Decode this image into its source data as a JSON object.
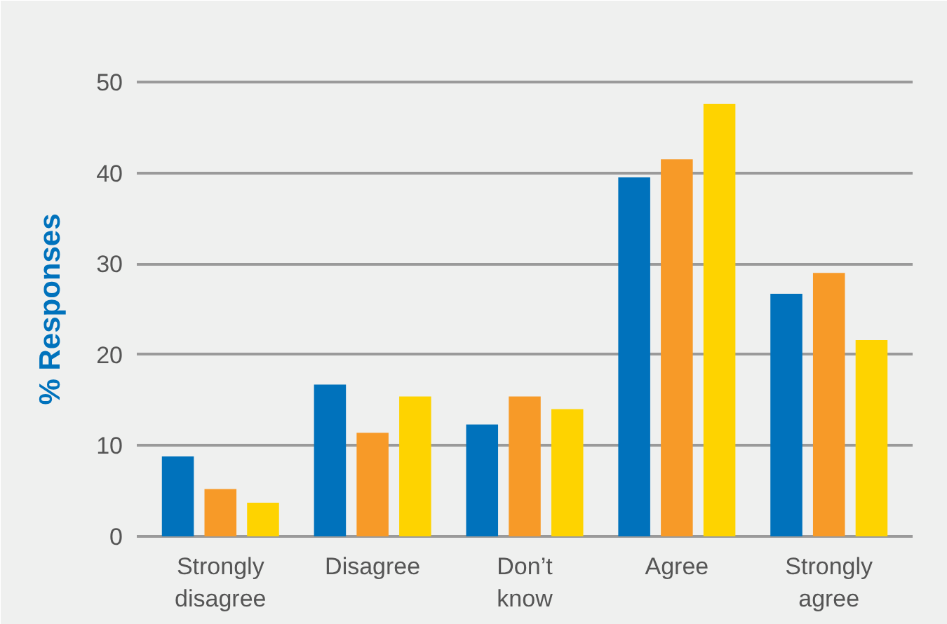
{
  "chart_data": {
    "type": "bar",
    "ylabel": "% Responses",
    "categories": [
      "Strongly disagree",
      "Disagree",
      "Don’t know",
      "Agree",
      "Strongly agree"
    ],
    "series": [
      {
        "color": "#0072bc",
        "values": [
          8.8,
          16.7,
          12.3,
          39.5,
          26.7
        ]
      },
      {
        "color": "#f79a28",
        "values": [
          5.2,
          11.4,
          15.4,
          41.5,
          29.0
        ]
      },
      {
        "color": "#fed300",
        "values": [
          3.7,
          15.4,
          14.0,
          47.6,
          21.6
        ]
      }
    ],
    "ylim": [
      0,
      50
    ],
    "yticks": [
      0,
      10,
      20,
      30,
      40,
      50
    ],
    "grid": "y"
  }
}
